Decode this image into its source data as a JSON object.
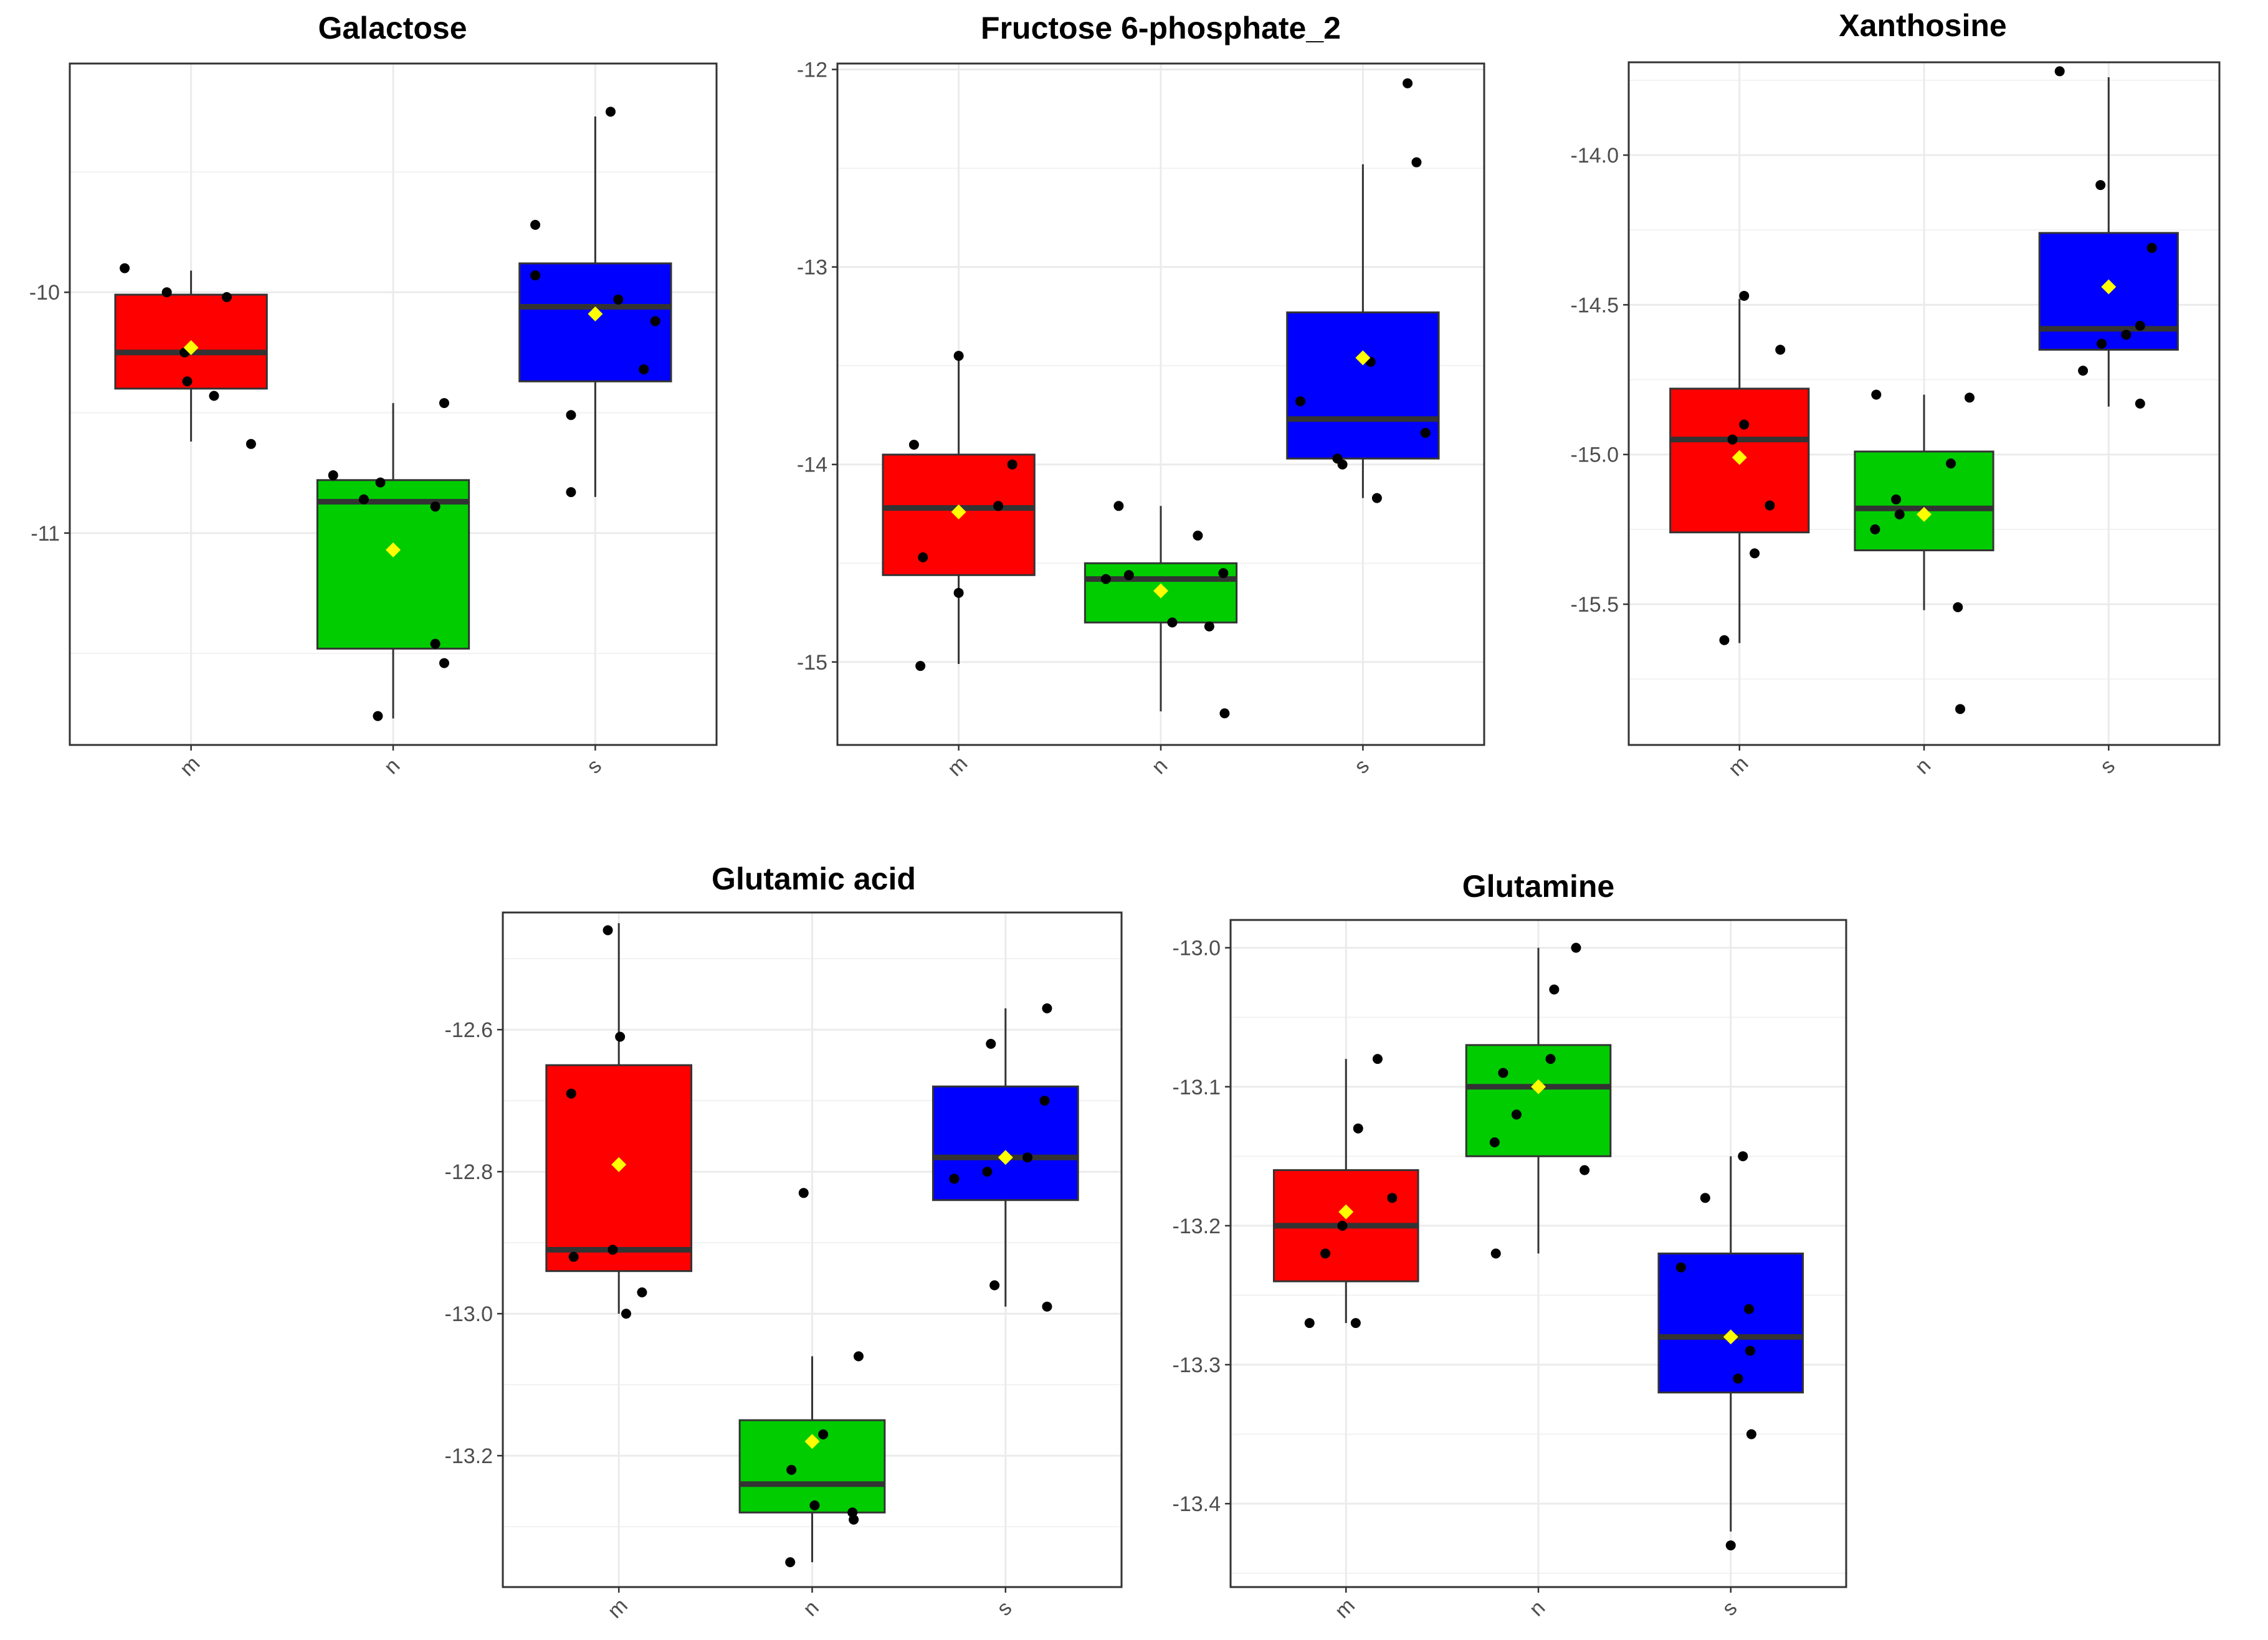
{
  "colors": {
    "m": "#FF0000",
    "n": "#00CC00",
    "s": "#0000FF",
    "mean": "#FFFF00",
    "point": "#000000"
  },
  "chart_data": [
    {
      "type": "boxplot",
      "title": "Galactose",
      "categories": [
        "m",
        "n",
        "s"
      ],
      "ylim": [
        -11.88,
        -9.05
      ],
      "yticks": [
        -11,
        -10
      ],
      "boxes": [
        {
          "group": "m",
          "whisker_low": -10.62,
          "q1": -10.4,
          "median": -10.25,
          "q3": -10.01,
          "whisker_high": -9.91,
          "mean": -10.23,
          "points": [
            [
              -0.52,
              -9.9
            ],
            [
              -0.19,
              -10.0
            ],
            [
              -0.05,
              -10.25
            ],
            [
              -0.03,
              -10.37
            ],
            [
              0.18,
              -10.43
            ],
            [
              0.28,
              -10.02
            ],
            [
              0.47,
              -10.63
            ]
          ]
        },
        {
          "group": "n",
          "whisker_low": -11.77,
          "q1": -11.48,
          "median": -10.87,
          "q3": -10.78,
          "whisker_high": -10.46,
          "mean": -11.07,
          "points": [
            [
              -0.47,
              -10.76
            ],
            [
              -0.23,
              -10.86
            ],
            [
              -0.12,
              -11.76
            ],
            [
              -0.1,
              -10.79
            ],
            [
              0.33,
              -10.89
            ],
            [
              0.33,
              -11.46
            ],
            [
              0.4,
              -10.46
            ],
            [
              0.4,
              -11.54
            ]
          ]
        },
        {
          "group": "s",
          "whisker_low": -10.85,
          "q1": -10.37,
          "median": -10.06,
          "q3": -9.88,
          "whisker_high": -9.27,
          "mean": -10.09,
          "points": [
            [
              -0.47,
              -9.72
            ],
            [
              -0.47,
              -9.93
            ],
            [
              -0.19,
              -10.51
            ],
            [
              -0.19,
              -10.83
            ],
            [
              0.12,
              -9.25
            ],
            [
              0.18,
              -10.03
            ],
            [
              0.38,
              -10.32
            ],
            [
              0.47,
              -10.12
            ]
          ]
        }
      ]
    },
    {
      "type": "boxplot",
      "title": "Fructose 6-phosphate_2",
      "categories": [
        "m",
        "n",
        "s"
      ],
      "ylim": [
        -15.42,
        -11.97
      ],
      "yticks": [
        -15,
        -14,
        -13,
        -12
      ],
      "boxes": [
        {
          "group": "m",
          "whisker_low": -15.01,
          "q1": -14.56,
          "median": -14.22,
          "q3": -13.95,
          "whisker_high": -13.46,
          "mean": -14.24,
          "points": [
            [
              -0.35,
              -13.9
            ],
            [
              -0.28,
              -14.47
            ],
            [
              -0.3,
              -15.02
            ],
            [
              0.0,
              -13.45
            ],
            [
              0.0,
              -14.65
            ],
            [
              0.31,
              -14.21
            ],
            [
              0.42,
              -14.0
            ]
          ]
        },
        {
          "group": "n",
          "whisker_low": -15.25,
          "q1": -14.8,
          "median": -14.58,
          "q3": -14.5,
          "whisker_high": -14.21,
          "mean": -14.64,
          "points": [
            [
              -0.43,
              -14.58
            ],
            [
              -0.33,
              -14.21
            ],
            [
              -0.25,
              -14.56
            ],
            [
              0.09,
              -14.8
            ],
            [
              0.29,
              -14.36
            ],
            [
              0.38,
              -14.82
            ],
            [
              0.49,
              -14.55
            ],
            [
              0.5,
              -15.26
            ]
          ]
        },
        {
          "group": "s",
          "whisker_low": -14.17,
          "q1": -13.97,
          "median": -13.77,
          "q3": -13.23,
          "whisker_high": -12.48,
          "mean": -13.46,
          "points": [
            [
              -0.49,
              -13.68
            ],
            [
              -0.2,
              -13.97
            ],
            [
              -0.16,
              -14.0
            ],
            [
              0.06,
              -13.48
            ],
            [
              0.11,
              -14.17
            ],
            [
              0.35,
              -12.07
            ],
            [
              0.42,
              -12.47
            ],
            [
              0.49,
              -13.84
            ]
          ]
        }
      ]
    },
    {
      "type": "boxplot",
      "title": "Xanthosine",
      "categories": [
        "m",
        "n",
        "s"
      ],
      "ylim": [
        -15.97,
        -13.69
      ],
      "yticks": [
        -15.5,
        -15.0,
        -14.5,
        -14.0
      ],
      "boxes": [
        {
          "group": "m",
          "whisker_low": -15.63,
          "q1": -15.26,
          "median": -14.95,
          "q3": -14.78,
          "whisker_high": -14.48,
          "mean": -15.01,
          "points": [
            [
              -0.13,
              -15.62
            ],
            [
              -0.06,
              -14.95
            ],
            [
              0.04,
              -14.47
            ],
            [
              0.04,
              -14.9
            ],
            [
              0.13,
              -15.33
            ],
            [
              0.26,
              -15.17
            ],
            [
              0.35,
              -14.65
            ]
          ]
        },
        {
          "group": "n",
          "whisker_low": -15.52,
          "q1": -15.32,
          "median": -15.18,
          "q3": -14.99,
          "whisker_high": -14.8,
          "mean": -15.2,
          "points": [
            [
              -0.42,
              -15.25
            ],
            [
              -0.41,
              -14.8
            ],
            [
              -0.24,
              -15.15
            ],
            [
              -0.21,
              -15.2
            ],
            [
              0.23,
              -15.03
            ],
            [
              0.29,
              -15.51
            ],
            [
              0.31,
              -15.85
            ],
            [
              0.39,
              -14.81
            ]
          ]
        },
        {
          "group": "s",
          "whisker_low": -14.84,
          "q1": -14.65,
          "median": -14.58,
          "q3": -14.26,
          "whisker_high": -13.74,
          "mean": -14.44,
          "points": [
            [
              -0.42,
              -13.72
            ],
            [
              -0.22,
              -14.72
            ],
            [
              -0.07,
              -14.1
            ],
            [
              -0.06,
              -14.63
            ],
            [
              0.15,
              -14.6
            ],
            [
              0.27,
              -14.57
            ],
            [
              0.27,
              -14.83
            ],
            [
              0.37,
              -14.31
            ]
          ]
        }
      ]
    },
    {
      "type": "boxplot",
      "title": "Glutamic acid",
      "categories": [
        "m",
        "n",
        "s"
      ],
      "ylim": [
        -13.385,
        -12.435
      ],
      "yticks": [
        -13.2,
        -13.0,
        -12.8,
        -12.6
      ],
      "boxes": [
        {
          "group": "m",
          "whisker_low": -13.0,
          "q1": -12.94,
          "median": -12.91,
          "q3": -12.65,
          "whisker_high": -12.45,
          "mean": -12.79,
          "points": [
            [
              -0.39,
              -12.69
            ],
            [
              -0.37,
              -12.92
            ],
            [
              -0.09,
              -12.46
            ],
            [
              -0.05,
              -12.91
            ],
            [
              0.01,
              -12.61
            ],
            [
              0.06,
              -13.0
            ],
            [
              0.19,
              -12.97
            ]
          ]
        },
        {
          "group": "n",
          "whisker_low": -13.35,
          "q1": -13.28,
          "median": -13.24,
          "q3": -13.15,
          "whisker_high": -13.06,
          "mean": -13.18,
          "points": [
            [
              -0.18,
              -13.35
            ],
            [
              -0.17,
              -13.22
            ],
            [
              -0.07,
              -12.83
            ],
            [
              0.02,
              -13.27
            ],
            [
              0.09,
              -13.17
            ],
            [
              0.33,
              -13.28
            ],
            [
              0.34,
              -13.29
            ],
            [
              0.38,
              -13.06
            ]
          ]
        },
        {
          "group": "s",
          "whisker_low": -12.99,
          "q1": -12.84,
          "median": -12.78,
          "q3": -12.68,
          "whisker_high": -12.57,
          "mean": -12.78,
          "points": [
            [
              -0.42,
              -12.81
            ],
            [
              -0.15,
              -12.8
            ],
            [
              -0.12,
              -12.62
            ],
            [
              -0.09,
              -12.96
            ],
            [
              0.18,
              -12.78
            ],
            [
              0.32,
              -12.7
            ],
            [
              0.34,
              -12.57
            ],
            [
              0.34,
              -12.99
            ]
          ]
        }
      ]
    },
    {
      "type": "boxplot",
      "title": "Glutamine",
      "categories": [
        "m",
        "n",
        "s"
      ],
      "ylim": [
        -13.46,
        -12.98
      ],
      "yticks": [
        -13.4,
        -13.3,
        -13.2,
        -13.1,
        -13.0
      ],
      "boxes": [
        {
          "group": "m",
          "whisker_low": -13.27,
          "q1": -13.24,
          "median": -13.2,
          "q3": -13.16,
          "whisker_high": -13.08,
          "mean": -13.19,
          "points": [
            [
              -0.3,
              -13.27
            ],
            [
              -0.17,
              -13.22
            ],
            [
              -0.03,
              -13.2
            ],
            [
              0.08,
              -13.27
            ],
            [
              0.1,
              -13.13
            ],
            [
              0.26,
              -13.08
            ],
            [
              0.38,
              -13.18
            ]
          ]
        },
        {
          "group": "n",
          "whisker_low": -13.22,
          "q1": -13.15,
          "median": -13.1,
          "q3": -13.07,
          "whisker_high": -13.0,
          "mean": -13.1,
          "points": [
            [
              -0.35,
              -13.22
            ],
            [
              -0.36,
              -13.14
            ],
            [
              -0.29,
              -13.09
            ],
            [
              -0.18,
              -13.12
            ],
            [
              0.1,
              -13.08
            ],
            [
              0.13,
              -13.03
            ],
            [
              0.31,
              -13.0
            ],
            [
              0.38,
              -13.16
            ]
          ]
        },
        {
          "group": "s",
          "whisker_low": -13.42,
          "q1": -13.32,
          "median": -13.28,
          "q3": -13.22,
          "whisker_high": -13.15,
          "mean": -13.28,
          "points": [
            [
              -0.41,
              -13.23
            ],
            [
              -0.21,
              -13.18
            ],
            [
              0.0,
              -13.43
            ],
            [
              0.1,
              -13.15
            ],
            [
              0.06,
              -13.31
            ],
            [
              0.15,
              -13.26
            ],
            [
              0.16,
              -13.29
            ],
            [
              0.17,
              -13.35
            ]
          ]
        }
      ]
    }
  ]
}
